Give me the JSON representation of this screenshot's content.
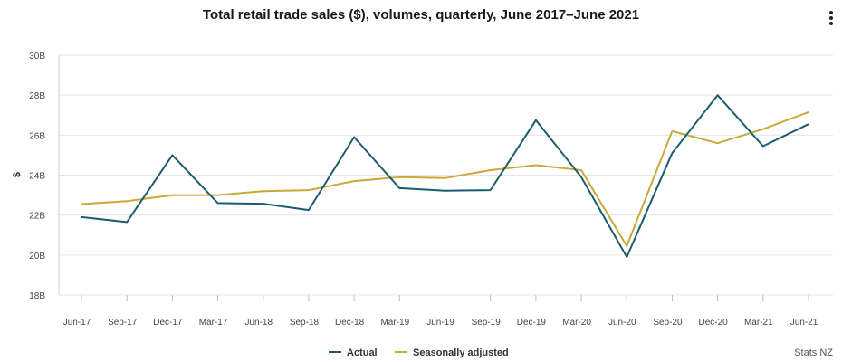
{
  "menu": {
    "icon": "more-vertical-icon"
  },
  "source": "Stats NZ",
  "chart_data": {
    "type": "line",
    "title": "Total retail trade sales ($), volumes, quarterly, June 2017–June 2021",
    "ylabel": "$",
    "xlabel": "",
    "ylim": [
      18,
      30
    ],
    "yticks": [
      "18B",
      "20B",
      "22B",
      "24B",
      "26B",
      "28B",
      "30B"
    ],
    "categories": [
      "Jun-17",
      "Sep-17",
      "Dec-17",
      "Mar-17",
      "Jun-18",
      "Sep-18",
      "Dec-18",
      "Mar-19",
      "Jun-19",
      "Sep-19",
      "Dec-19",
      "Mar-20",
      "Jun-20",
      "Sep-20",
      "Dec-20",
      "Mar-21",
      "Jun-21"
    ],
    "series": [
      {
        "name": "Actual",
        "color": "#1c5c6e",
        "values": [
          21.9,
          21.65,
          25.0,
          22.6,
          22.57,
          22.25,
          25.9,
          23.35,
          23.22,
          23.25,
          26.75,
          23.9,
          19.9,
          25.1,
          28.0,
          25.45,
          26.55
        ]
      },
      {
        "name": "Seasonally adjusted",
        "color": "#c9a93a",
        "values": [
          22.55,
          22.7,
          23.0,
          23.0,
          23.2,
          23.25,
          23.7,
          23.9,
          23.85,
          24.25,
          24.5,
          24.25,
          20.45,
          26.2,
          25.6,
          26.3,
          27.15
        ]
      }
    ],
    "grid": true,
    "legend": "bottom"
  }
}
